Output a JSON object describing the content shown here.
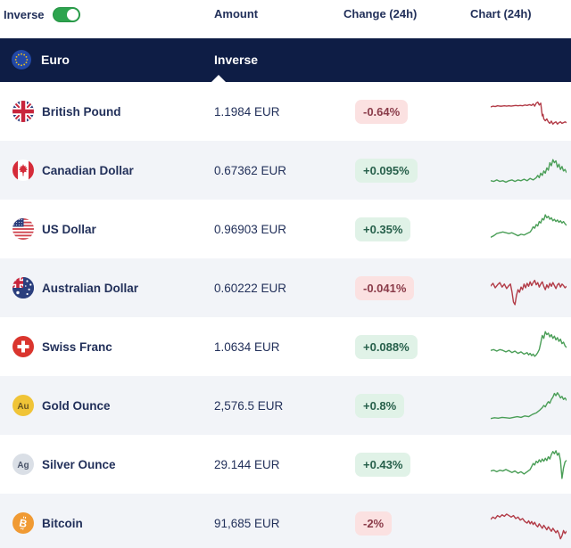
{
  "header": {
    "inverse_label": "Inverse",
    "toggle_on": true,
    "columns": {
      "amount": "Amount",
      "change": "Change (24h)",
      "chart": "Chart (24h)"
    }
  },
  "base": {
    "currency": "Euro",
    "icon": "flag-eu",
    "column_label": "Inverse"
  },
  "colors": {
    "navy": "#0e1d45",
    "toggle": "#2da44e",
    "text": "#22305a",
    "row_alt": "#f2f4f8",
    "pos_bg": "#e0f2e7",
    "pos_text": "#27604b",
    "neg_bg": "#fbe1e1",
    "neg_text": "#8a3b49",
    "spark_up": "#4a9e57",
    "spark_down": "#b23b47"
  },
  "rows": [
    {
      "name": "British Pound",
      "icon": "flag-uk",
      "amount": "1.1984 EUR",
      "change": "-0.64%",
      "direction": "down",
      "chart": {
        "points": [
          [
            0,
            38
          ],
          [
            3,
            36
          ],
          [
            6,
            37
          ],
          [
            9,
            35
          ],
          [
            12,
            36
          ],
          [
            15,
            36
          ],
          [
            18,
            35
          ],
          [
            21,
            36
          ],
          [
            24,
            35
          ],
          [
            27,
            36
          ],
          [
            30,
            35
          ],
          [
            33,
            34
          ],
          [
            36,
            35
          ],
          [
            39,
            34
          ],
          [
            42,
            35
          ],
          [
            45,
            33
          ],
          [
            48,
            34
          ],
          [
            51,
            32
          ],
          [
            54,
            34
          ],
          [
            56,
            30
          ],
          [
            58,
            36
          ],
          [
            60,
            28
          ],
          [
            62,
            25
          ],
          [
            64,
            33
          ],
          [
            66,
            28
          ],
          [
            67,
            45
          ],
          [
            68,
            62
          ],
          [
            69,
            58
          ],
          [
            70,
            70
          ],
          [
            72,
            75
          ],
          [
            74,
            70
          ],
          [
            76,
            78
          ],
          [
            78,
            82
          ],
          [
            80,
            76
          ],
          [
            82,
            84
          ],
          [
            84,
            80
          ],
          [
            86,
            78
          ],
          [
            88,
            84
          ],
          [
            90,
            80
          ],
          [
            92,
            78
          ],
          [
            94,
            82
          ],
          [
            96,
            80
          ],
          [
            98,
            78
          ],
          [
            100,
            80
          ]
        ]
      }
    },
    {
      "name": "Canadian Dollar",
      "icon": "flag-canada",
      "amount": "0.67362 EUR",
      "change": "+0.095%",
      "direction": "up",
      "chart": {
        "points": [
          [
            0,
            78
          ],
          [
            4,
            80
          ],
          [
            8,
            76
          ],
          [
            12,
            80
          ],
          [
            16,
            78
          ],
          [
            20,
            82
          ],
          [
            24,
            78
          ],
          [
            28,
            76
          ],
          [
            32,
            80
          ],
          [
            36,
            76
          ],
          [
            40,
            78
          ],
          [
            44,
            74
          ],
          [
            48,
            78
          ],
          [
            52,
            72
          ],
          [
            56,
            76
          ],
          [
            60,
            70
          ],
          [
            62,
            64
          ],
          [
            64,
            70
          ],
          [
            66,
            58
          ],
          [
            68,
            64
          ],
          [
            70,
            52
          ],
          [
            72,
            58
          ],
          [
            74,
            44
          ],
          [
            76,
            50
          ],
          [
            78,
            30
          ],
          [
            80,
            38
          ],
          [
            82,
            22
          ],
          [
            84,
            30
          ],
          [
            86,
            25
          ],
          [
            88,
            42
          ],
          [
            90,
            34
          ],
          [
            92,
            48
          ],
          [
            94,
            40
          ],
          [
            96,
            52
          ],
          [
            98,
            48
          ],
          [
            100,
            56
          ]
        ]
      }
    },
    {
      "name": "US Dollar",
      "icon": "flag-us",
      "amount": "0.96903 EUR",
      "change": "+0.35%",
      "direction": "up",
      "chart": {
        "points": [
          [
            0,
            72
          ],
          [
            4,
            68
          ],
          [
            8,
            62
          ],
          [
            12,
            60
          ],
          [
            16,
            58
          ],
          [
            20,
            60
          ],
          [
            24,
            62
          ],
          [
            28,
            60
          ],
          [
            32,
            64
          ],
          [
            36,
            68
          ],
          [
            40,
            64
          ],
          [
            44,
            66
          ],
          [
            48,
            62
          ],
          [
            52,
            58
          ],
          [
            54,
            52
          ],
          [
            56,
            44
          ],
          [
            58,
            48
          ],
          [
            60,
            38
          ],
          [
            62,
            42
          ],
          [
            64,
            30
          ],
          [
            66,
            34
          ],
          [
            68,
            22
          ],
          [
            70,
            26
          ],
          [
            72,
            12
          ],
          [
            74,
            20
          ],
          [
            76,
            16
          ],
          [
            78,
            24
          ],
          [
            80,
            20
          ],
          [
            82,
            28
          ],
          [
            84,
            24
          ],
          [
            86,
            30
          ],
          [
            88,
            26
          ],
          [
            90,
            32
          ],
          [
            92,
            28
          ],
          [
            94,
            34
          ],
          [
            96,
            30
          ],
          [
            98,
            36
          ],
          [
            100,
            40
          ]
        ]
      }
    },
    {
      "name": "Australian Dollar",
      "icon": "flag-australia",
      "amount": "0.60222 EUR",
      "change": "-0.041%",
      "direction": "down",
      "chart": {
        "points": [
          [
            0,
            45
          ],
          [
            3,
            38
          ],
          [
            6,
            50
          ],
          [
            9,
            42
          ],
          [
            12,
            36
          ],
          [
            15,
            48
          ],
          [
            18,
            40
          ],
          [
            21,
            52
          ],
          [
            24,
            44
          ],
          [
            26,
            40
          ],
          [
            28,
            60
          ],
          [
            30,
            88
          ],
          [
            32,
            95
          ],
          [
            34,
            70
          ],
          [
            36,
            55
          ],
          [
            38,
            62
          ],
          [
            40,
            48
          ],
          [
            42,
            55
          ],
          [
            44,
            40
          ],
          [
            46,
            50
          ],
          [
            48,
            38
          ],
          [
            50,
            46
          ],
          [
            52,
            34
          ],
          [
            54,
            44
          ],
          [
            56,
            36
          ],
          [
            58,
            30
          ],
          [
            60,
            42
          ],
          [
            62,
            36
          ],
          [
            64,
            48
          ],
          [
            66,
            40
          ],
          [
            68,
            34
          ],
          [
            70,
            46
          ],
          [
            72,
            55
          ],
          [
            74,
            42
          ],
          [
            76,
            50
          ],
          [
            78,
            38
          ],
          [
            80,
            46
          ],
          [
            82,
            36
          ],
          [
            84,
            44
          ],
          [
            86,
            52
          ],
          [
            88,
            42
          ],
          [
            90,
            38
          ],
          [
            92,
            48
          ],
          [
            94,
            40
          ],
          [
            96,
            44
          ],
          [
            98,
            50
          ],
          [
            100,
            46
          ]
        ]
      }
    },
    {
      "name": "Swiss Franc",
      "icon": "flag-swiss",
      "amount": "1.0634 EUR",
      "change": "+0.088%",
      "direction": "up",
      "chart": {
        "points": [
          [
            0,
            60
          ],
          [
            4,
            58
          ],
          [
            8,
            62
          ],
          [
            12,
            58
          ],
          [
            16,
            60
          ],
          [
            20,
            64
          ],
          [
            24,
            60
          ],
          [
            28,
            66
          ],
          [
            32,
            62
          ],
          [
            36,
            68
          ],
          [
            40,
            64
          ],
          [
            44,
            70
          ],
          [
            48,
            66
          ],
          [
            50,
            72
          ],
          [
            52,
            68
          ],
          [
            54,
            74
          ],
          [
            56,
            70
          ],
          [
            58,
            76
          ],
          [
            60,
            72
          ],
          [
            62,
            66
          ],
          [
            64,
            58
          ],
          [
            66,
            40
          ],
          [
            68,
            20
          ],
          [
            70,
            28
          ],
          [
            72,
            10
          ],
          [
            74,
            18
          ],
          [
            76,
            14
          ],
          [
            78,
            24
          ],
          [
            80,
            18
          ],
          [
            82,
            28
          ],
          [
            84,
            22
          ],
          [
            86,
            32
          ],
          [
            88,
            26
          ],
          [
            90,
            36
          ],
          [
            92,
            30
          ],
          [
            94,
            42
          ],
          [
            96,
            38
          ],
          [
            98,
            48
          ],
          [
            100,
            52
          ]
        ]
      }
    },
    {
      "name": "Gold Ounce",
      "icon": "metal-gold",
      "amount": "2,576.5 EUR",
      "change": "+0.8%",
      "direction": "up",
      "chart": {
        "points": [
          [
            0,
            85
          ],
          [
            5,
            83
          ],
          [
            10,
            84
          ],
          [
            15,
            82
          ],
          [
            20,
            83
          ],
          [
            25,
            84
          ],
          [
            30,
            82
          ],
          [
            35,
            80
          ],
          [
            40,
            82
          ],
          [
            45,
            78
          ],
          [
            50,
            80
          ],
          [
            55,
            74
          ],
          [
            60,
            70
          ],
          [
            65,
            62
          ],
          [
            68,
            56
          ],
          [
            70,
            50
          ],
          [
            72,
            54
          ],
          [
            74,
            46
          ],
          [
            76,
            40
          ],
          [
            78,
            44
          ],
          [
            80,
            34
          ],
          [
            82,
            28
          ],
          [
            84,
            18
          ],
          [
            86,
            24
          ],
          [
            88,
            16
          ],
          [
            90,
            22
          ],
          [
            92,
            30
          ],
          [
            94,
            26
          ],
          [
            96,
            34
          ],
          [
            98,
            30
          ],
          [
            100,
            36
          ]
        ]
      }
    },
    {
      "name": "Silver Ounce",
      "icon": "metal-silver",
      "amount": "29.144 EUR",
      "change": "+0.43%",
      "direction": "up",
      "chart": {
        "points": [
          [
            0,
            68
          ],
          [
            4,
            66
          ],
          [
            8,
            70
          ],
          [
            12,
            66
          ],
          [
            16,
            68
          ],
          [
            20,
            64
          ],
          [
            24,
            68
          ],
          [
            28,
            72
          ],
          [
            32,
            68
          ],
          [
            36,
            74
          ],
          [
            40,
            70
          ],
          [
            44,
            76
          ],
          [
            48,
            70
          ],
          [
            52,
            64
          ],
          [
            54,
            56
          ],
          [
            56,
            48
          ],
          [
            58,
            52
          ],
          [
            60,
            42
          ],
          [
            62,
            46
          ],
          [
            64,
            38
          ],
          [
            66,
            44
          ],
          [
            68,
            36
          ],
          [
            70,
            42
          ],
          [
            72,
            34
          ],
          [
            74,
            40
          ],
          [
            76,
            30
          ],
          [
            78,
            36
          ],
          [
            80,
            24
          ],
          [
            82,
            16
          ],
          [
            84,
            22
          ],
          [
            86,
            14
          ],
          [
            88,
            26
          ],
          [
            90,
            20
          ],
          [
            92,
            40
          ],
          [
            94,
            88
          ],
          [
            96,
            60
          ],
          [
            98,
            44
          ],
          [
            100,
            40
          ]
        ]
      }
    },
    {
      "name": "Bitcoin",
      "icon": "crypto-btc",
      "amount": "91,685 EUR",
      "change": "-2%",
      "direction": "down",
      "chart": {
        "points": [
          [
            0,
            40
          ],
          [
            3,
            34
          ],
          [
            6,
            38
          ],
          [
            9,
            30
          ],
          [
            12,
            34
          ],
          [
            15,
            28
          ],
          [
            18,
            32
          ],
          [
            21,
            26
          ],
          [
            24,
            30
          ],
          [
            27,
            34
          ],
          [
            30,
            30
          ],
          [
            33,
            38
          ],
          [
            36,
            34
          ],
          [
            39,
            42
          ],
          [
            42,
            38
          ],
          [
            45,
            46
          ],
          [
            48,
            50
          ],
          [
            50,
            44
          ],
          [
            52,
            52
          ],
          [
            54,
            46
          ],
          [
            56,
            54
          ],
          [
            58,
            48
          ],
          [
            60,
            56
          ],
          [
            62,
            60
          ],
          [
            64,
            52
          ],
          [
            66,
            58
          ],
          [
            68,
            64
          ],
          [
            70,
            56
          ],
          [
            72,
            62
          ],
          [
            74,
            68
          ],
          [
            76,
            60
          ],
          [
            78,
            66
          ],
          [
            80,
            72
          ],
          [
            82,
            64
          ],
          [
            84,
            70
          ],
          [
            86,
            76
          ],
          [
            88,
            70
          ],
          [
            90,
            78
          ],
          [
            92,
            92
          ],
          [
            94,
            84
          ],
          [
            96,
            70
          ],
          [
            98,
            78
          ],
          [
            100,
            72
          ]
        ]
      }
    }
  ]
}
